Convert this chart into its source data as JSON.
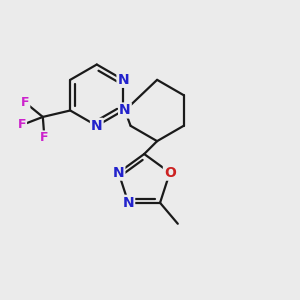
{
  "background_color": "#ebebeb",
  "bond_color": "#1a1a1a",
  "N_color": "#2222cc",
  "O_color": "#cc2222",
  "F_color": "#cc22cc",
  "line_width": 1.6,
  "dbo": 0.012,
  "figsize": [
    3.0,
    3.0
  ],
  "dpi": 100,
  "xlim": [
    0.0,
    1.0
  ],
  "ylim": [
    0.0,
    1.0
  ]
}
